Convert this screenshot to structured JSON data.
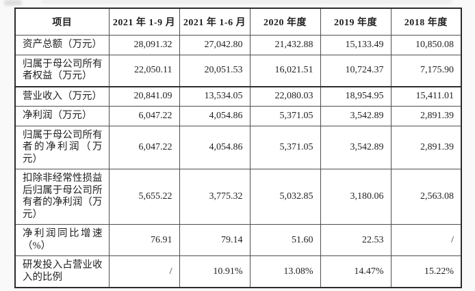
{
  "table": {
    "columns": [
      "项目",
      "2021 年 1-9 月",
      "2021 年 1-6 月",
      "2020 年度",
      "2019 年度",
      "2018 年度"
    ],
    "rows": [
      {
        "label": "资产总额（万元）",
        "values": [
          "28,091.32",
          "27,042.80",
          "21,432.88",
          "15,133.49",
          "10,850.08"
        ]
      },
      {
        "label": "归属于母公司所有者权益（万元）",
        "values": [
          "22,050.11",
          "20,051.53",
          "16,021.51",
          "10,724.37",
          "7,175.90"
        ]
      },
      {
        "label": "营业收入（万元）",
        "values": [
          "20,841.09",
          "13,534.05",
          "22,080.03",
          "18,954.95",
          "15,411.01"
        ]
      },
      {
        "label": "净利润（万元）",
        "values": [
          "6,047.22",
          "4,054.86",
          "5,371.05",
          "3,542.89",
          "2,891.39"
        ]
      },
      {
        "label": "归属于母公司所有者的净利润（万元）",
        "values": [
          "6,047.22",
          "4,054.86",
          "5,371.05",
          "3,542.89",
          "2,891.39"
        ]
      },
      {
        "label": "扣除非经常性损益后归属于母公司所有者的净利润（万元）",
        "values": [
          "5,655.22",
          "3,775.32",
          "5,032.85",
          "3,180.06",
          "2,563.08"
        ]
      },
      {
        "label": "净利润同比增速（%）",
        "values": [
          "76.91",
          "79.14",
          "51.60",
          "22.53",
          "/"
        ]
      },
      {
        "label": "研发投入占营业收入的比例",
        "values": [
          "/",
          "10.91%",
          "13.08%",
          "14.47%",
          "15.22%"
        ]
      }
    ]
  },
  "colors": {
    "page_background": "#f9f9f9",
    "table_background": "#ffffff",
    "border_outer": "#2b2b2b",
    "border_inner": "#4d4d4d",
    "text": "#1f1f1f"
  }
}
